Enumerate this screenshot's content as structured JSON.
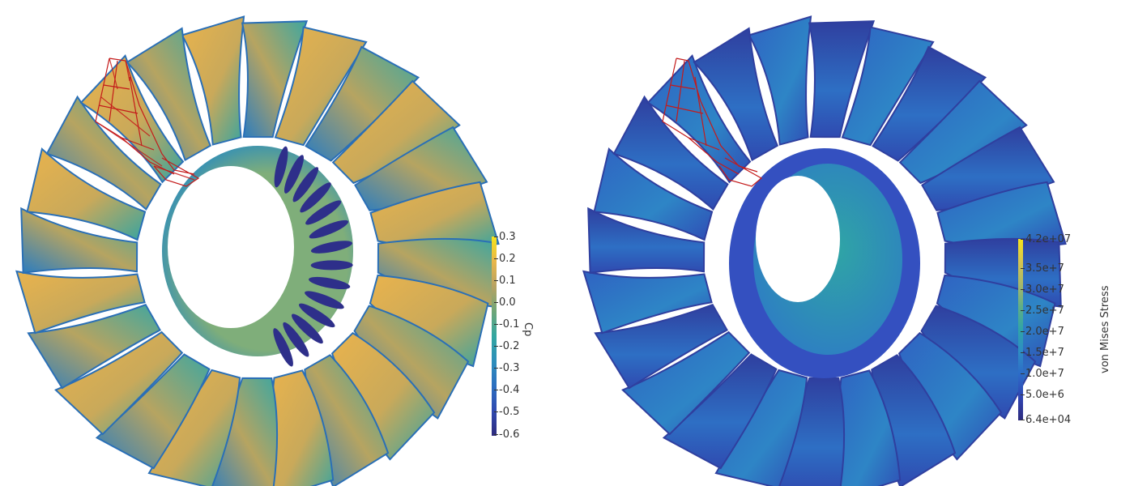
{
  "left": {
    "colorbar": {
      "title": "Cp",
      "ticks": [
        "0.3",
        "0.2",
        "0.1",
        "0.0",
        "-0.1",
        "-0.2",
        "-0.3",
        "-0.4",
        "-0.5",
        "-0.6"
      ],
      "colors": [
        "#f7e41b",
        "#e8b64a",
        "#b7a262",
        "#6fa678",
        "#32a6a0",
        "#2d8fbb",
        "#2c6fc0",
        "#2f49b0",
        "#2e2b7d"
      ]
    }
  },
  "right": {
    "colorbar": {
      "title": "von Mises Stress",
      "ticks": [
        "4.2e+07",
        "3.5e+7",
        "3.0e+7",
        "2.5e+7",
        "2.0e+7",
        "1.5e+7",
        "1.0e+7",
        "5.0e+6",
        "6.4e+04"
      ],
      "colors": [
        "#f7e41b",
        "#d6c54f",
        "#a7b86a",
        "#5fae86",
        "#2fa4a8",
        "#2e8cc4",
        "#2d6ac8",
        "#3044b2",
        "#2e2b7d"
      ]
    }
  }
}
